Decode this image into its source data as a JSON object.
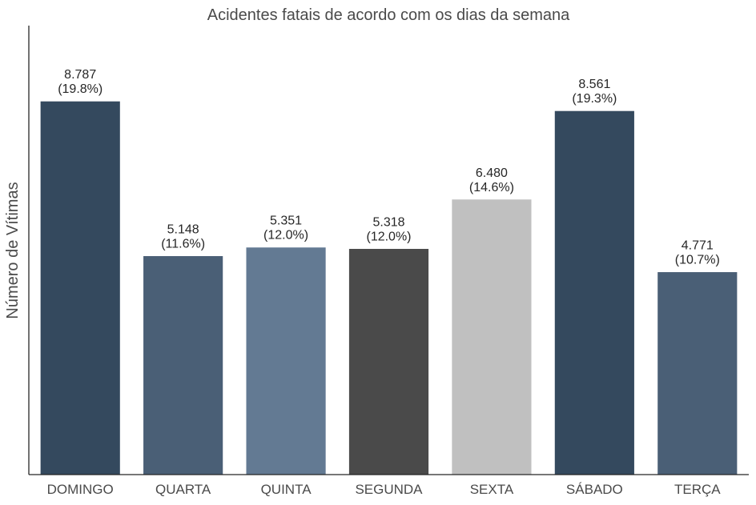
{
  "chart_data": {
    "type": "bar",
    "title": "Acidentes fatais de acordo com os dias da semana",
    "xlabel": "",
    "ylabel": "Número de Vítimas",
    "categories": [
      "DOMINGO",
      "QUARTA",
      "QUINTA",
      "SEGUNDA",
      "SEXTA",
      "SÁBADO",
      "TERÇA"
    ],
    "values": [
      8787,
      5148,
      5351,
      5318,
      6480,
      8561,
      4771
    ],
    "value_labels": [
      "8.787",
      "5.148",
      "5.351",
      "5.318",
      "6.480",
      "8.561",
      "4.771"
    ],
    "percent_labels": [
      "(19.8%)",
      "(11.6%)",
      "(12.0%)",
      "(12.0%)",
      "(14.6%)",
      "(19.3%)",
      "(10.7%)"
    ],
    "colors": [
      "#34495e",
      "#4a5f76",
      "#637a93",
      "#4a4a4a",
      "#c0c0c0",
      "#34495e",
      "#4a5f76"
    ],
    "ylim": [
      0,
      10560
    ],
    "grid": false,
    "y_ticks_visible": false
  }
}
